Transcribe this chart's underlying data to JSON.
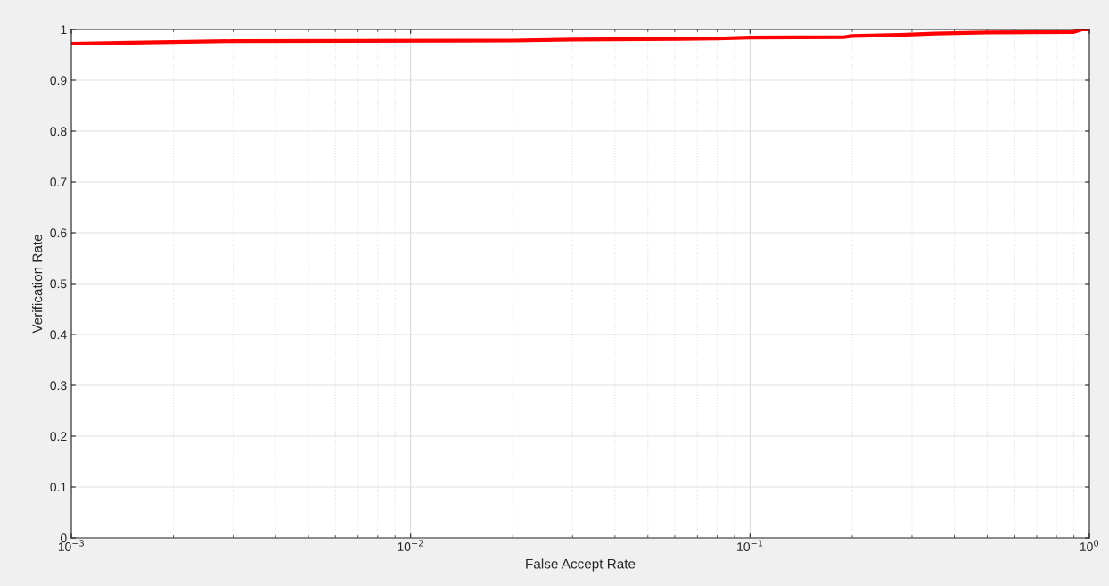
{
  "chart_data": {
    "type": "line",
    "xlabel": "False Accept Rate",
    "ylabel": "Verification Rate",
    "log": "x",
    "grid": true,
    "marker": "none",
    "line_style": "solid",
    "xlim": [
      0.001,
      1
    ],
    "xticks": [
      {
        "value": 0.001,
        "label": "10$^{−3}$"
      },
      {
        "value": 0.01,
        "label": "10$^{−2}$"
      },
      {
        "value": 0.1,
        "label": "10$^{−1}$"
      },
      {
        "value": 1,
        "label": "10$^{0}$"
      }
    ],
    "ylim": [
      0,
      1
    ],
    "yticks": [
      0,
      0.1,
      0.2,
      0.3,
      0.4,
      0.5,
      0.6,
      0.7,
      0.8,
      0.9,
      1
    ],
    "series": [
      {
        "color": "#ff0000",
        "x": [
          0.001,
          0.0015,
          0.003,
          0.02,
          0.03,
          0.08,
          0.1,
          0.19,
          0.2,
          0.3,
          0.35,
          0.5,
          0.9,
          0.95,
          1.0
        ],
        "values": [
          0.972,
          0.974,
          0.977,
          0.978,
          0.98,
          0.982,
          0.984,
          0.985,
          0.987,
          0.99,
          0.992,
          0.994,
          0.995,
          1.0,
          1.0
        ]
      }
    ]
  }
}
